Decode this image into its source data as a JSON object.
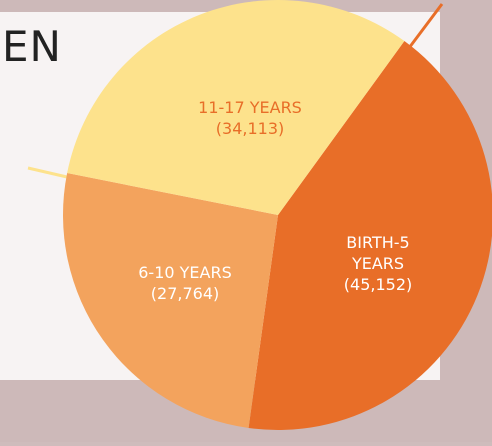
{
  "chart_data": {
    "type": "pie",
    "annotation": "EN",
    "categories": [
      "BIRTH-5 YEARS",
      "6-10 YEARS",
      "11-17 YEARS"
    ],
    "values": [
      45152,
      27764,
      34113
    ],
    "value_labels": [
      "(45,152)",
      "(27,764)",
      "(34,113)"
    ],
    "colors": [
      "#e86e28",
      "#f3a35d",
      "#fde28c"
    ],
    "label_colors": [
      "#ffffff",
      "#ffffff",
      "#e86e28"
    ]
  }
}
